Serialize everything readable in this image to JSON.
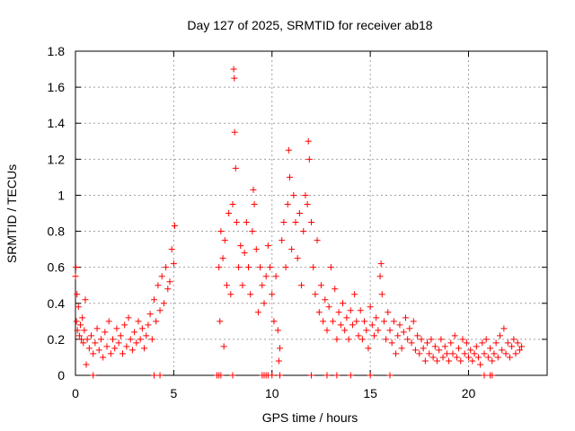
{
  "chart_data": {
    "type": "scatter",
    "title": "Day 127 of 2025, SRMTID for receiver ab18",
    "xlabel": "GPS time / hours",
    "ylabel": "SRMTID / TECUs",
    "xlim": [
      0,
      24
    ],
    "ylim": [
      0,
      1.8
    ],
    "xticks": [
      0,
      5,
      10,
      15,
      20
    ],
    "yticks": [
      0,
      0.2,
      0.4,
      0.6,
      0.8,
      1,
      1.2,
      1.4,
      1.6,
      1.8
    ],
    "xtick_labels": [
      "0",
      "5",
      "10",
      "15",
      "20"
    ],
    "ytick_labels": [
      "0",
      "0.2",
      "0.4",
      "0.6",
      "0.8",
      "1",
      "1.2",
      "1.4",
      "1.6",
      "1.8"
    ],
    "grid": true,
    "marker": "+",
    "color": "#ff0000",
    "series": [
      {
        "name": "SRMTID",
        "points": [
          [
            0.0,
            0.55
          ],
          [
            0.02,
            0.6
          ],
          [
            0.05,
            0.3
          ],
          [
            0.08,
            0.45
          ],
          [
            0.1,
            0.25
          ],
          [
            0.15,
            0.38
          ],
          [
            0.2,
            0.22
          ],
          [
            0.25,
            0.28
          ],
          [
            0.3,
            0.2
          ],
          [
            0.35,
            0.32
          ],
          [
            0.4,
            0.18
          ],
          [
            0.45,
            0.25
          ],
          [
            0.5,
            0.42
          ],
          [
            0.55,
            0.06
          ],
          [
            0.6,
            0.2
          ],
          [
            0.7,
            0.15
          ],
          [
            0.8,
            0.22
          ],
          [
            0.9,
            0.12
          ],
          [
            1.0,
            0.18
          ],
          [
            1.1,
            0.26
          ],
          [
            1.2,
            0.14
          ],
          [
            1.3,
            0.2
          ],
          [
            1.4,
            0.1
          ],
          [
            1.5,
            0.24
          ],
          [
            1.6,
            0.16
          ],
          [
            1.7,
            0.3
          ],
          [
            1.8,
            0.12
          ],
          [
            1.9,
            0.2
          ],
          [
            2.0,
            0.15
          ],
          [
            2.1,
            0.26
          ],
          [
            2.2,
            0.18
          ],
          [
            2.3,
            0.22
          ],
          [
            2.4,
            0.12
          ],
          [
            2.5,
            0.28
          ],
          [
            2.6,
            0.16
          ],
          [
            2.7,
            0.32
          ],
          [
            2.8,
            0.2
          ],
          [
            2.9,
            0.14
          ],
          [
            3.0,
            0.24
          ],
          [
            3.1,
            0.18
          ],
          [
            3.2,
            0.3
          ],
          [
            3.3,
            0.2
          ],
          [
            3.4,
            0.26
          ],
          [
            3.5,
            0.15
          ],
          [
            3.6,
            0.22
          ],
          [
            3.7,
            0.28
          ],
          [
            3.8,
            0.34
          ],
          [
            3.9,
            0.2
          ],
          [
            4.0,
            0.42
          ],
          [
            4.1,
            0.3
          ],
          [
            4.2,
            0.5
          ],
          [
            4.3,
            0.36
          ],
          [
            4.4,
            0.55
          ],
          [
            4.5,
            0.4
          ],
          [
            4.6,
            0.6
          ],
          [
            4.7,
            0.48
          ],
          [
            4.8,
            0.52
          ],
          [
            4.9,
            0.7
          ],
          [
            5.0,
            0.62
          ],
          [
            5.05,
            0.83
          ],
          [
            7.3,
            0.6
          ],
          [
            7.35,
            0.3
          ],
          [
            7.4,
            0.8
          ],
          [
            7.5,
            0.65
          ],
          [
            7.55,
            0.16
          ],
          [
            7.6,
            0.75
          ],
          [
            7.7,
            0.5
          ],
          [
            7.8,
            0.9
          ],
          [
            7.9,
            0.45
          ],
          [
            8.0,
            0.95
          ],
          [
            8.05,
            1.7
          ],
          [
            8.08,
            1.65
          ],
          [
            8.1,
            1.35
          ],
          [
            8.15,
            1.15
          ],
          [
            8.2,
            0.85
          ],
          [
            8.3,
            0.6
          ],
          [
            8.4,
            0.72
          ],
          [
            8.5,
            0.5
          ],
          [
            8.6,
            0.68
          ],
          [
            8.7,
            0.85
          ],
          [
            8.8,
            0.6
          ],
          [
            8.9,
            0.45
          ],
          [
            9.0,
            0.8
          ],
          [
            9.05,
            1.03
          ],
          [
            9.1,
            0.95
          ],
          [
            9.2,
            0.7
          ],
          [
            9.3,
            0.35
          ],
          [
            9.4,
            0.6
          ],
          [
            9.5,
            0.5
          ],
          [
            9.6,
            0.4
          ],
          [
            9.7,
            0.55
          ],
          [
            9.8,
            0.72
          ],
          [
            9.9,
            0.6
          ],
          [
            10.0,
            0.45
          ],
          [
            10.1,
            0.3
          ],
          [
            10.2,
            0.55
          ],
          [
            10.3,
            0.25
          ],
          [
            10.35,
            0.08
          ],
          [
            10.4,
            0.15
          ],
          [
            10.5,
            0.75
          ],
          [
            10.6,
            0.85
          ],
          [
            10.7,
            0.6
          ],
          [
            10.8,
            0.95
          ],
          [
            10.85,
            1.25
          ],
          [
            10.9,
            1.1
          ],
          [
            11.0,
            0.7
          ],
          [
            11.1,
            1.0
          ],
          [
            11.2,
            0.85
          ],
          [
            11.3,
            0.65
          ],
          [
            11.4,
            0.9
          ],
          [
            11.5,
            0.5
          ],
          [
            11.6,
            0.8
          ],
          [
            11.7,
            1.0
          ],
          [
            11.8,
            0.95
          ],
          [
            11.85,
            1.3
          ],
          [
            11.9,
            1.2
          ],
          [
            12.0,
            0.85
          ],
          [
            12.1,
            0.6
          ],
          [
            12.2,
            0.45
          ],
          [
            12.3,
            0.75
          ],
          [
            12.4,
            0.35
          ],
          [
            12.5,
            0.5
          ],
          [
            12.6,
            0.3
          ],
          [
            12.7,
            0.42
          ],
          [
            12.8,
            0.25
          ],
          [
            12.9,
            0.38
          ],
          [
            13.0,
            0.6
          ],
          [
            13.1,
            0.3
          ],
          [
            13.2,
            0.48
          ],
          [
            13.3,
            0.2
          ],
          [
            13.4,
            0.35
          ],
          [
            13.5,
            0.28
          ],
          [
            13.6,
            0.4
          ],
          [
            13.7,
            0.25
          ],
          [
            13.8,
            0.32
          ],
          [
            13.9,
            0.2
          ],
          [
            14.0,
            0.36
          ],
          [
            14.1,
            0.28
          ],
          [
            14.2,
            0.45
          ],
          [
            14.3,
            0.3
          ],
          [
            14.4,
            0.22
          ],
          [
            14.5,
            0.36
          ],
          [
            14.6,
            0.2
          ],
          [
            14.7,
            0.3
          ],
          [
            14.8,
            0.25
          ],
          [
            14.9,
            0.15
          ],
          [
            15.0,
            0.38
          ],
          [
            15.1,
            0.28
          ],
          [
            15.2,
            0.22
          ],
          [
            15.3,
            0.32
          ],
          [
            15.4,
            0.25
          ],
          [
            15.5,
            0.55
          ],
          [
            15.55,
            0.62
          ],
          [
            15.6,
            0.45
          ],
          [
            15.7,
            0.3
          ],
          [
            15.8,
            0.2
          ],
          [
            15.9,
            0.35
          ],
          [
            16.0,
            0.25
          ],
          [
            16.1,
            0.18
          ],
          [
            16.2,
            0.3
          ],
          [
            16.3,
            0.12
          ],
          [
            16.4,
            0.22
          ],
          [
            16.5,
            0.28
          ],
          [
            16.6,
            0.15
          ],
          [
            16.7,
            0.24
          ],
          [
            16.8,
            0.32
          ],
          [
            16.9,
            0.2
          ],
          [
            17.0,
            0.26
          ],
          [
            17.1,
            0.18
          ],
          [
            17.2,
            0.3
          ],
          [
            17.3,
            0.14
          ],
          [
            17.4,
            0.22
          ],
          [
            17.5,
            0.12
          ],
          [
            17.6,
            0.2
          ],
          [
            17.7,
            0.15
          ],
          [
            17.8,
            0.08
          ],
          [
            17.9,
            0.18
          ],
          [
            18.0,
            0.12
          ],
          [
            18.1,
            0.2
          ],
          [
            18.2,
            0.1
          ],
          [
            18.3,
            0.16
          ],
          [
            18.4,
            0.08
          ],
          [
            18.5,
            0.14
          ],
          [
            18.6,
            0.2
          ],
          [
            18.7,
            0.1
          ],
          [
            18.8,
            0.16
          ],
          [
            18.9,
            0.12
          ],
          [
            19.0,
            0.08
          ],
          [
            19.1,
            0.18
          ],
          [
            19.2,
            0.12
          ],
          [
            19.3,
            0.22
          ],
          [
            19.4,
            0.1
          ],
          [
            19.5,
            0.15
          ],
          [
            19.6,
            0.08
          ],
          [
            19.7,
            0.2
          ],
          [
            19.8,
            0.12
          ],
          [
            19.9,
            0.18
          ],
          [
            20.0,
            0.1
          ],
          [
            20.1,
            0.14
          ],
          [
            20.2,
            0.08
          ],
          [
            20.3,
            0.12
          ],
          [
            20.4,
            0.16
          ],
          [
            20.5,
            0.1
          ],
          [
            20.6,
            0.06
          ],
          [
            20.7,
            0.18
          ],
          [
            20.8,
            0.12
          ],
          [
            20.9,
            0.2
          ],
          [
            21.0,
            0.1
          ],
          [
            21.1,
            0.15
          ],
          [
            21.2,
            0.08
          ],
          [
            21.3,
            0.12
          ],
          [
            21.4,
            0.18
          ],
          [
            21.5,
            0.1
          ],
          [
            21.6,
            0.22
          ],
          [
            21.7,
            0.14
          ],
          [
            21.8,
            0.26
          ],
          [
            21.9,
            0.12
          ],
          [
            22.0,
            0.18
          ],
          [
            22.1,
            0.1
          ],
          [
            22.2,
            0.16
          ],
          [
            22.3,
            0.2
          ],
          [
            22.4,
            0.12
          ],
          [
            22.5,
            0.18
          ],
          [
            22.6,
            0.14
          ],
          [
            22.7,
            0.16
          ]
        ],
        "zero_points": [
          [
            0.9,
            0
          ],
          [
            4.0,
            0
          ],
          [
            4.3,
            0
          ],
          [
            7.2,
            0
          ],
          [
            7.3,
            0
          ],
          [
            7.4,
            0
          ],
          [
            8.0,
            0
          ],
          [
            9.5,
            0
          ],
          [
            9.6,
            0
          ],
          [
            9.7,
            0
          ],
          [
            9.8,
            0
          ],
          [
            10.0,
            0
          ],
          [
            10.4,
            0
          ],
          [
            12.0,
            0
          ],
          [
            12.8,
            0
          ],
          [
            13.3,
            0
          ],
          [
            14.0,
            0
          ],
          [
            15.0,
            0
          ],
          [
            16.0,
            0
          ],
          [
            20.8,
            0
          ],
          [
            21.1,
            0
          ],
          [
            21.2,
            0
          ]
        ]
      }
    ]
  }
}
